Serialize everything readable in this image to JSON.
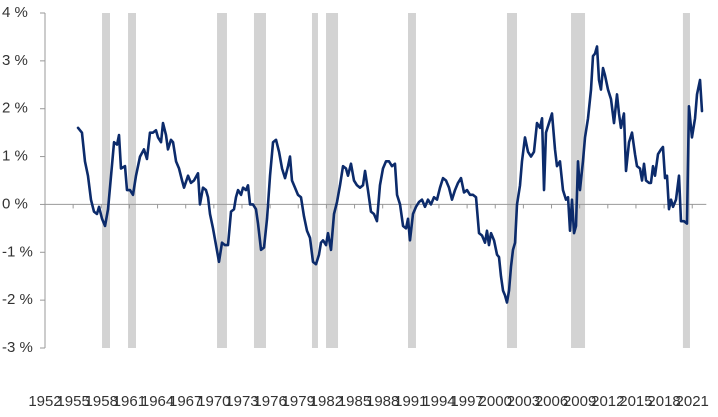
{
  "chart_data": {
    "type": "line",
    "color": "#0c2b6b",
    "shade_color": "#d3d3d3",
    "xlim": [
      1952,
      2022.5
    ],
    "ylim": [
      -3,
      4
    ],
    "xticks": [
      1952,
      1955,
      1958,
      1961,
      1964,
      1967,
      1970,
      1973,
      1976,
      1979,
      1982,
      1985,
      1988,
      1991,
      1994,
      1997,
      2000,
      2003,
      2006,
      2009,
      2012,
      2015,
      2018,
      2021
    ],
    "yticks": [
      {
        "value": 4,
        "label": "4 %"
      },
      {
        "value": 3,
        "label": "3 %"
      },
      {
        "value": 2,
        "label": "2 %"
      },
      {
        "value": 1,
        "label": "1 %"
      },
      {
        "value": 0,
        "label": "0 %"
      },
      {
        "value": -1,
        "label": "-1 %"
      },
      {
        "value": -2,
        "label": "-2 %"
      },
      {
        "value": -3,
        "label": "-3 %"
      }
    ],
    "shaded_periods": [
      [
        1958.08,
        1958.93
      ],
      [
        1960.85,
        1961.7
      ],
      [
        1970.34,
        1971.4
      ],
      [
        1974.28,
        1975.56
      ],
      [
        1980.46,
        1981.1
      ],
      [
        1981.96,
        1983.24
      ],
      [
        1990.7,
        1991.55
      ],
      [
        2001.25,
        2002.32
      ],
      [
        2008.08,
        2009.57
      ],
      [
        2020.01,
        2020.76
      ]
    ],
    "x": [
      1955.52,
      1955.94,
      1956.26,
      1956.58,
      1956.9,
      1957.22,
      1957.54,
      1957.76,
      1958.08,
      1958.4,
      1958.72,
      1959.04,
      1959.36,
      1959.68,
      1959.89,
      1960.1,
      1960.53,
      1960.74,
      1961.06,
      1961.38,
      1961.7,
      1962.13,
      1962.55,
      1962.87,
      1963.19,
      1963.51,
      1963.83,
      1964.05,
      1964.37,
      1964.58,
      1964.9,
      1965.11,
      1965.43,
      1965.65,
      1965.97,
      1966.29,
      1966.61,
      1966.82,
      1967.25,
      1967.56,
      1967.88,
      1968.31,
      1968.52,
      1968.84,
      1969.16,
      1969.38,
      1969.59,
      1969.91,
      1970.23,
      1970.55,
      1970.87,
      1971.19,
      1971.51,
      1971.83,
      1972.15,
      1972.36,
      1972.58,
      1972.9,
      1973.11,
      1973.43,
      1973.64,
      1973.86,
      1974.17,
      1974.49,
      1974.71,
      1975.03,
      1975.35,
      1975.67,
      1975.99,
      1976.31,
      1976.63,
      1976.95,
      1977.27,
      1977.59,
      1977.91,
      1978.12,
      1978.33,
      1978.65,
      1978.97,
      1979.29,
      1979.61,
      1979.93,
      1980.25,
      1980.57,
      1980.89,
      1981.21,
      1981.42,
      1981.64,
      1981.96,
      1982.17,
      1982.49,
      1982.81,
      1983.13,
      1983.45,
      1983.77,
      1984.09,
      1984.3,
      1984.62,
      1984.94,
      1985.26,
      1985.58,
      1985.9,
      1986.12,
      1986.43,
      1986.75,
      1987.07,
      1987.39,
      1987.71,
      1988.03,
      1988.35,
      1988.67,
      1988.99,
      1989.31,
      1989.53,
      1989.85,
      1990.17,
      1990.49,
      1990.7,
      1990.91,
      1991.23,
      1991.55,
      1991.87,
      1992.19,
      1992.51,
      1992.83,
      1993.15,
      1993.47,
      1993.79,
      1994.11,
      1994.43,
      1994.75,
      1995.07,
      1995.39,
      1995.71,
      1996.03,
      1996.35,
      1996.67,
      1996.99,
      1997.31,
      1997.63,
      1997.95,
      1998.27,
      1998.59,
      1998.91,
      1999.12,
      1999.33,
      1999.55,
      1999.87,
      2000.19,
      2000.4,
      2000.61,
      2000.83,
      2001.04,
      2001.25,
      2001.47,
      2001.68,
      2001.89,
      2002.11,
      2002.32,
      2002.64,
      2002.85,
      2003.17,
      2003.49,
      2003.81,
      2004.13,
      2004.45,
      2004.77,
      2004.99,
      2005.2,
      2005.41,
      2005.73,
      2006.05,
      2006.37,
      2006.58,
      2006.9,
      2007.22,
      2007.54,
      2007.76,
      2007.97,
      2008.18,
      2008.4,
      2008.61,
      2008.82,
      2009.03,
      2009.35,
      2009.57,
      2009.89,
      2010.21,
      2010.42,
      2010.63,
      2010.85,
      2011.06,
      2011.27,
      2011.49,
      2011.7,
      2012.02,
      2012.34,
      2012.66,
      2012.98,
      2013.19,
      2013.4,
      2013.72,
      2013.94,
      2014.26,
      2014.58,
      2014.9,
      2015.11,
      2015.43,
      2015.65,
      2015.86,
      2016.07,
      2016.39,
      2016.6,
      2016.82,
      2017.03,
      2017.35,
      2017.67,
      2017.88,
      2018.1,
      2018.31,
      2018.52,
      2018.74,
      2018.95,
      2019.27,
      2019.59,
      2019.8,
      2020.12,
      2020.44,
      2020.65,
      2020.97,
      2021.3,
      2021.51,
      2021.83,
      2022.04
    ],
    "values": [
      1.6,
      1.5,
      0.9,
      0.6,
      0.1,
      -0.15,
      -0.2,
      -0.05,
      -0.3,
      -0.45,
      -0.1,
      0.6,
      1.3,
      1.25,
      1.45,
      0.75,
      0.8,
      0.3,
      0.3,
      0.2,
      0.6,
      1.0,
      1.15,
      0.95,
      1.5,
      1.5,
      1.55,
      1.4,
      1.3,
      1.7,
      1.45,
      1.15,
      1.35,
      1.3,
      0.9,
      0.75,
      0.5,
      0.35,
      0.6,
      0.45,
      0.5,
      0.65,
      0.0,
      0.35,
      0.3,
      0.15,
      -0.2,
      -0.5,
      -0.85,
      -1.2,
      -0.8,
      -0.85,
      -0.85,
      -0.15,
      -0.1,
      0.15,
      0.3,
      0.2,
      0.35,
      0.3,
      0.4,
      0.0,
      0.0,
      -0.1,
      -0.4,
      -0.95,
      -0.9,
      -0.3,
      0.6,
      1.3,
      1.35,
      1.1,
      0.75,
      0.55,
      0.8,
      1.0,
      0.5,
      0.35,
      0.2,
      0.15,
      -0.25,
      -0.55,
      -0.7,
      -1.2,
      -1.25,
      -1.05,
      -0.8,
      -0.75,
      -0.85,
      -0.6,
      -0.95,
      -0.2,
      0.05,
      0.4,
      0.8,
      0.75,
      0.6,
      0.85,
      0.5,
      0.4,
      0.35,
      0.4,
      0.7,
      0.3,
      -0.15,
      -0.2,
      -0.35,
      0.4,
      0.75,
      0.9,
      0.9,
      0.8,
      0.85,
      0.2,
      0.0,
      -0.45,
      -0.5,
      -0.3,
      -0.75,
      -0.2,
      -0.05,
      0.05,
      0.1,
      -0.05,
      0.1,
      0.0,
      0.15,
      0.1,
      0.35,
      0.55,
      0.5,
      0.35,
      0.1,
      0.3,
      0.45,
      0.55,
      0.25,
      0.3,
      0.2,
      0.2,
      0.15,
      -0.6,
      -0.65,
      -0.8,
      -0.55,
      -0.85,
      -0.6,
      -0.75,
      -1.05,
      -1.1,
      -1.5,
      -1.8,
      -1.9,
      -2.05,
      -1.8,
      -1.3,
      -0.95,
      -0.8,
      0.0,
      0.4,
      0.9,
      1.4,
      1.1,
      1.0,
      1.1,
      1.7,
      1.6,
      1.8,
      0.3,
      1.5,
      1.7,
      1.9,
      1.15,
      0.8,
      0.9,
      0.3,
      0.1,
      0.15,
      -0.55,
      0.1,
      -0.6,
      -0.45,
      0.9,
      0.3,
      0.9,
      1.4,
      1.8,
      2.4,
      3.1,
      3.15,
      3.3,
      2.6,
      2.4,
      2.85,
      2.7,
      2.4,
      2.2,
      1.7,
      2.3,
      1.9,
      1.6,
      1.9,
      0.7,
      1.3,
      1.5,
      1.05,
      0.8,
      0.75,
      0.5,
      0.85,
      0.5,
      0.45,
      0.45,
      0.8,
      0.6,
      1.05,
      1.15,
      1.2,
      0.55,
      0.6,
      -0.1,
      0.1,
      -0.05,
      0.1,
      0.6,
      -0.35,
      -0.35,
      -0.4,
      2.05,
      1.4,
      1.8,
      2.3,
      2.6,
      1.95
    ]
  }
}
